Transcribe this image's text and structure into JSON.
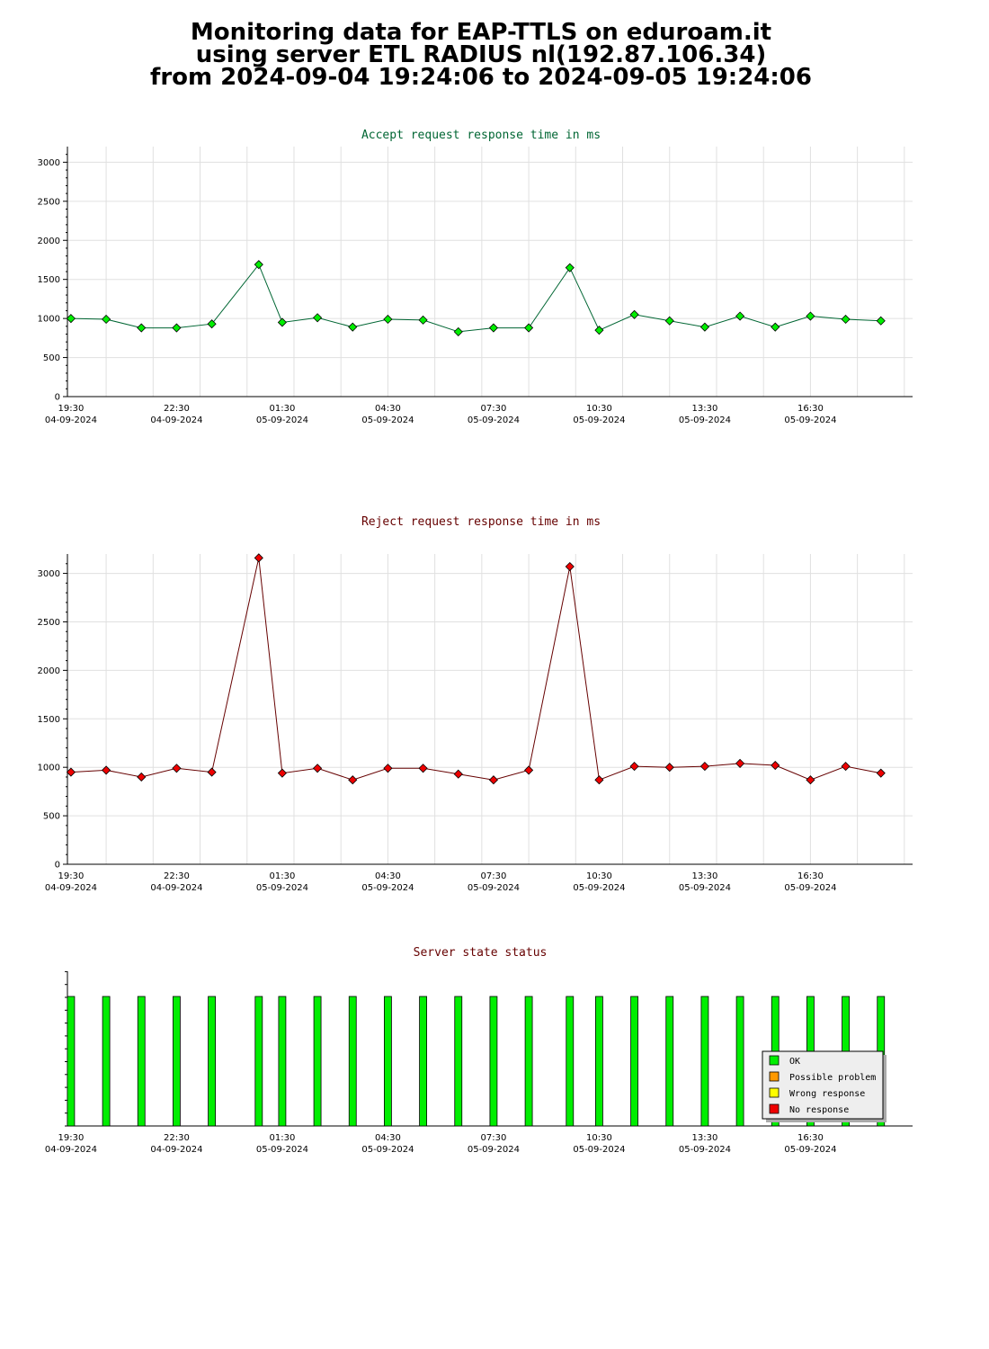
{
  "header": {
    "line1": "Monitoring data for EAP-TTLS on eduroam.it",
    "line2": "using server ETL RADIUS nl(192.87.106.34)",
    "line3": "from 2024-09-04 19:24:06 to 2024-09-05 19:24:06"
  },
  "colors": {
    "accept_title": "#006633",
    "reject_title": "#660000",
    "status_title": "#660000",
    "accept_marker": "#00ee00",
    "reject_marker": "#ee0000",
    "ok": "#00ee00",
    "possible_problem": "#ff9900",
    "wrong_response": "#ffff00",
    "no_response": "#ee0000"
  },
  "chart_data": [
    {
      "type": "line",
      "title": "Accept request response time in ms",
      "xlabel": "",
      "ylabel": "",
      "ylim": [
        0,
        3200
      ],
      "yticks": [
        0,
        500,
        1000,
        1500,
        2000,
        2500,
        3000
      ],
      "xlim": [
        "2024-09-04 19:24",
        "2024-09-05 19:24"
      ],
      "xtick_labels": [
        {
          "time": "19:30",
          "date": "04-09-2024"
        },
        {
          "time": "22:30",
          "date": "04-09-2024"
        },
        {
          "time": "01:30",
          "date": "05-09-2024"
        },
        {
          "time": "04:30",
          "date": "05-09-2024"
        },
        {
          "time": "07:30",
          "date": "05-09-2024"
        },
        {
          "time": "10:30",
          "date": "05-09-2024"
        },
        {
          "time": "13:30",
          "date": "05-09-2024"
        },
        {
          "time": "16:30",
          "date": "05-09-2024"
        }
      ],
      "grid": true,
      "x": [
        "2024-09-04 19:30",
        "2024-09-04 20:30",
        "2024-09-04 21:30",
        "2024-09-04 22:30",
        "2024-09-04 23:30",
        "2024-09-05 00:50",
        "2024-09-05 01:30",
        "2024-09-05 02:30",
        "2024-09-05 03:30",
        "2024-09-05 04:30",
        "2024-09-05 05:30",
        "2024-09-05 06:30",
        "2024-09-05 07:30",
        "2024-09-05 08:30",
        "2024-09-05 09:40",
        "2024-09-05 10:30",
        "2024-09-05 11:30",
        "2024-09-05 12:30",
        "2024-09-05 13:30",
        "2024-09-05 14:30",
        "2024-09-05 15:30",
        "2024-09-05 16:30",
        "2024-09-05 17:30",
        "2024-09-05 18:30"
      ],
      "values": [
        1000,
        990,
        880,
        880,
        930,
        1690,
        950,
        1010,
        890,
        990,
        980,
        830,
        880,
        880,
        1650,
        850,
        1050,
        970,
        890,
        1030,
        890,
        1030,
        990,
        970
      ]
    },
    {
      "type": "line",
      "title": "Reject request response time in ms",
      "xlabel": "",
      "ylabel": "",
      "ylim": [
        0,
        3200
      ],
      "yticks": [
        0,
        500,
        1000,
        1500,
        2000,
        2500,
        3000
      ],
      "xlim": [
        "2024-09-04 19:24",
        "2024-09-05 19:24"
      ],
      "xtick_labels": [
        {
          "time": "19:30",
          "date": "04-09-2024"
        },
        {
          "time": "22:30",
          "date": "04-09-2024"
        },
        {
          "time": "01:30",
          "date": "05-09-2024"
        },
        {
          "time": "04:30",
          "date": "05-09-2024"
        },
        {
          "time": "07:30",
          "date": "05-09-2024"
        },
        {
          "time": "10:30",
          "date": "05-09-2024"
        },
        {
          "time": "13:30",
          "date": "05-09-2024"
        },
        {
          "time": "16:30",
          "date": "05-09-2024"
        }
      ],
      "grid": true,
      "x": [
        "2024-09-04 19:30",
        "2024-09-04 20:30",
        "2024-09-04 21:30",
        "2024-09-04 22:30",
        "2024-09-04 23:30",
        "2024-09-05 00:50",
        "2024-09-05 01:30",
        "2024-09-05 02:30",
        "2024-09-05 03:30",
        "2024-09-05 04:30",
        "2024-09-05 05:30",
        "2024-09-05 06:30",
        "2024-09-05 07:30",
        "2024-09-05 08:30",
        "2024-09-05 09:40",
        "2024-09-05 10:30",
        "2024-09-05 11:30",
        "2024-09-05 12:30",
        "2024-09-05 13:30",
        "2024-09-05 14:30",
        "2024-09-05 15:30",
        "2024-09-05 16:30",
        "2024-09-05 17:30",
        "2024-09-05 18:30"
      ],
      "values": [
        950,
        970,
        900,
        990,
        950,
        3160,
        940,
        990,
        870,
        990,
        990,
        930,
        870,
        970,
        3070,
        870,
        1010,
        1000,
        1010,
        1040,
        1020,
        870,
        1010,
        940
      ]
    },
    {
      "type": "bar",
      "title": "Server state status",
      "xlim": [
        "2024-09-04 19:24",
        "2024-09-05 19:24"
      ],
      "xtick_labels": [
        {
          "time": "19:30",
          "date": "04-09-2024"
        },
        {
          "time": "22:30",
          "date": "04-09-2024"
        },
        {
          "time": "01:30",
          "date": "05-09-2024"
        },
        {
          "time": "04:30",
          "date": "05-09-2024"
        },
        {
          "time": "07:30",
          "date": "05-09-2024"
        },
        {
          "time": "10:30",
          "date": "05-09-2024"
        },
        {
          "time": "13:30",
          "date": "05-09-2024"
        },
        {
          "time": "16:30",
          "date": "05-09-2024"
        }
      ],
      "grid": false,
      "x": [
        "2024-09-04 19:30",
        "2024-09-04 20:30",
        "2024-09-04 21:30",
        "2024-09-04 22:30",
        "2024-09-04 23:30",
        "2024-09-05 00:50",
        "2024-09-05 01:30",
        "2024-09-05 02:30",
        "2024-09-05 03:30",
        "2024-09-05 04:30",
        "2024-09-05 05:30",
        "2024-09-05 06:30",
        "2024-09-05 07:30",
        "2024-09-05 08:30",
        "2024-09-05 09:40",
        "2024-09-05 10:30",
        "2024-09-05 11:30",
        "2024-09-05 12:30",
        "2024-09-05 13:30",
        "2024-09-05 14:30",
        "2024-09-05 15:30",
        "2024-09-05 16:30",
        "2024-09-05 17:30",
        "2024-09-05 18:30"
      ],
      "states": [
        "OK",
        "OK",
        "OK",
        "OK",
        "OK",
        "OK",
        "OK",
        "OK",
        "OK",
        "OK",
        "OK",
        "OK",
        "OK",
        "OK",
        "OK",
        "OK",
        "OK",
        "OK",
        "OK",
        "OK",
        "OK",
        "OK",
        "OK",
        "OK"
      ],
      "legend": {
        "position": "bottom-right",
        "entries": [
          "OK",
          "Possible problem",
          "Wrong response",
          "No response"
        ]
      }
    }
  ]
}
